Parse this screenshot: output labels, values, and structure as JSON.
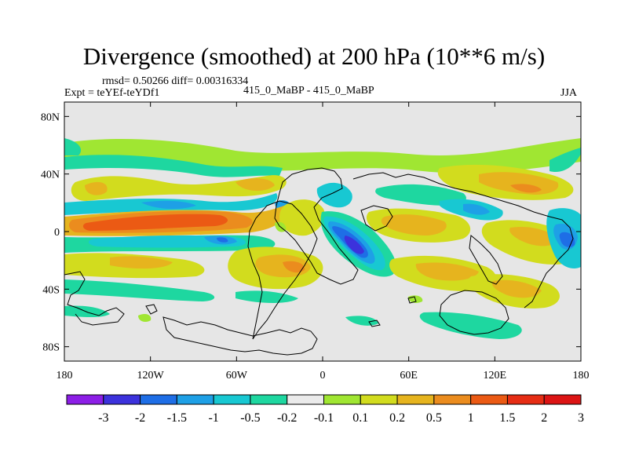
{
  "chart_data": {
    "type": "heatmap",
    "title": "Divergence (smoothed) at 200 hPa (10**6 m/s)",
    "stats_label": "rmsd= 0.50266 diff= 0.00316334",
    "experiment_label": "Expt = teYEf-teYDf1",
    "center_label": "415_0_MaBP - 415_0_MaBP",
    "season_label": "JJA",
    "xaxis": {
      "range": [
        -180,
        180
      ],
      "ticks": [
        {
          "value": -180,
          "label": "180"
        },
        {
          "value": -120,
          "label": "120W"
        },
        {
          "value": -60,
          "label": "60W"
        },
        {
          "value": 0,
          "label": "0"
        },
        {
          "value": 60,
          "label": "60E"
        },
        {
          "value": 120,
          "label": "120E"
        },
        {
          "value": 180,
          "label": "180"
        }
      ]
    },
    "yaxis": {
      "range": [
        -90,
        90
      ],
      "ticks": [
        {
          "value": 80,
          "label": "80N"
        },
        {
          "value": 40,
          "label": "40N"
        },
        {
          "value": 0,
          "label": "0"
        },
        {
          "value": -40,
          "label": "40S"
        },
        {
          "value": -80,
          "label": "80S"
        }
      ]
    },
    "colorbar": {
      "colors": [
        "#8c1ee6",
        "#3c32dc",
        "#1e6ee6",
        "#1ea0e6",
        "#18c8d2",
        "#1ed7a0",
        "#ebebeb",
        "#a0e632",
        "#d2dc1e",
        "#e6b41e",
        "#eb8c1e",
        "#eb5a14",
        "#e62d14",
        "#dc1414"
      ],
      "labels": [
        "-3",
        "-2",
        "-1.5",
        "-1",
        "-0.5",
        "-0.2",
        "-0.1",
        "0.1",
        "0.2",
        "0.5",
        "1",
        "1.5",
        "2",
        "3"
      ]
    },
    "features": [
      {
        "name": "pacific-itcz-positive",
        "lon": -138,
        "lat": 4,
        "value": 1.6
      },
      {
        "name": "east-pacific-positive",
        "lon": -98,
        "lat": 8,
        "value": 1.2
      },
      {
        "name": "south-pacific-negative",
        "lon": -118,
        "lat": -8,
        "value": -0.8
      },
      {
        "name": "north-pacific-negative",
        "lon": -120,
        "lat": 22,
        "value": -0.6
      },
      {
        "name": "africa-negative-core",
        "lon": 25,
        "lat": -12,
        "value": -2.0
      },
      {
        "name": "south-atlantic-positive",
        "lon": -25,
        "lat": -22,
        "value": 0.9
      },
      {
        "name": "indian-ocean-positive",
        "lon": 55,
        "lat": -5,
        "value": 0.8
      },
      {
        "name": "west-pacific-positive",
        "lon": 150,
        "lat": 28,
        "value": 0.9
      },
      {
        "name": "east-asia-negative",
        "lon": 110,
        "lat": 18,
        "value": -0.6
      },
      {
        "name": "date-line-negative",
        "lon": 172,
        "lat": -8,
        "value": -1.5
      }
    ]
  }
}
